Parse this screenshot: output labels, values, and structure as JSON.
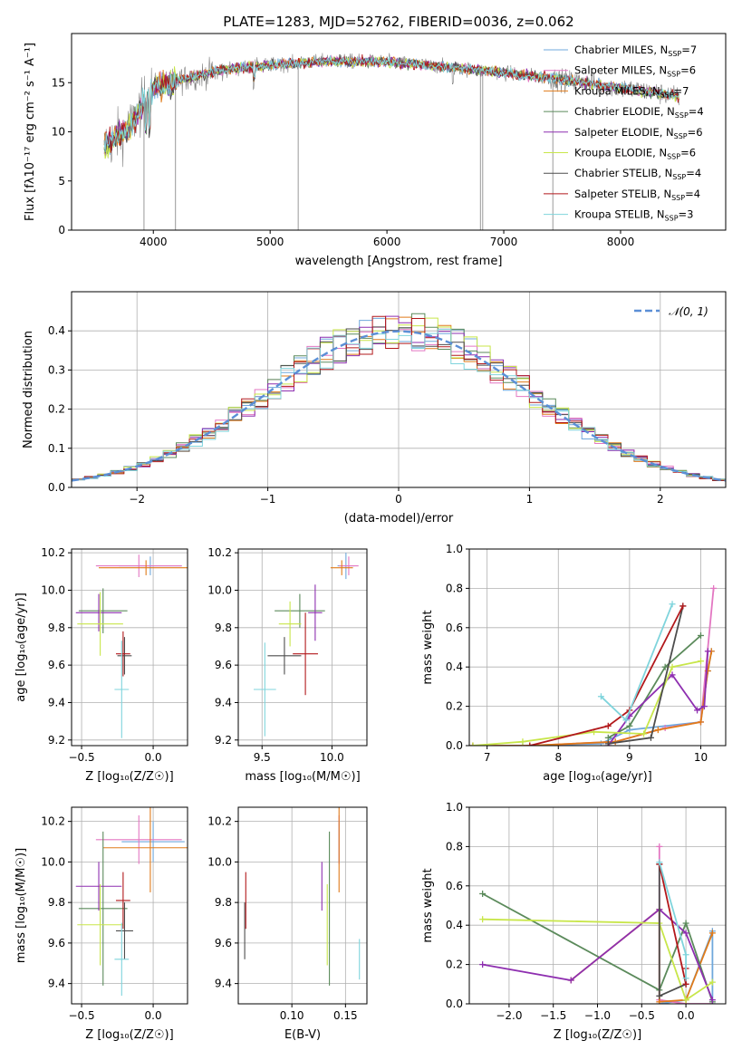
{
  "figure_title": "PLATE=1283, MJD=52762, FIBERID=0036, z=0.062",
  "colors": {
    "Chabrier MILES": "#6fa8dc",
    "Salpeter MILES": "#e377c2",
    "Kroupa MILES": "#e07b1a",
    "Chabrier ELODIE": "#5b8a5b",
    "Salpeter ELODIE": "#8e2fb0",
    "Kroupa ELODIE": "#c8e64a",
    "Chabrier STELIB": "#4d4d4d",
    "Salpeter STELIB": "#b2181b",
    "Kroupa STELIB": "#7fd4dc",
    "data": "#808080",
    "normal": "#5b8fd6"
  },
  "chart_data": [
    {
      "id": "spectrum",
      "type": "line",
      "xlabel": "wavelength [Angstrom, rest frame]",
      "ylabel": "Flux [fλ10⁻¹⁷ erg cm⁻² s⁻¹ A⁻¹]",
      "xlim": [
        3300,
        8900
      ],
      "ylim": [
        0,
        20
      ],
      "xticks": [
        4000,
        5000,
        6000,
        7000,
        8000
      ],
      "yticks": [
        0,
        5,
        10,
        15
      ],
      "grid": false,
      "legend_position": "right",
      "legend": [
        {
          "series": "Chabrier MILES",
          "label": "Chabrier MILES, N",
          "sub": "SSP",
          "suffix": "=7"
        },
        {
          "series": "Salpeter MILES",
          "label": "Salpeter MILES, N",
          "sub": "SSP",
          "suffix": "=6"
        },
        {
          "series": "Kroupa MILES",
          "label": "Kroupa MILES, N",
          "sub": "SSP",
          "suffix": "=7"
        },
        {
          "series": "Chabrier ELODIE",
          "label": "Chabrier ELODIE, N",
          "sub": "SSP",
          "suffix": "=4"
        },
        {
          "series": "Salpeter ELODIE",
          "label": "Salpeter ELODIE, N",
          "sub": "SSP",
          "suffix": "=6"
        },
        {
          "series": "Kroupa ELODIE",
          "label": "Kroupa ELODIE, N",
          "sub": "SSP",
          "suffix": "=6"
        },
        {
          "series": "Chabrier STELIB",
          "label": "Chabrier STELIB, N",
          "sub": "SSP",
          "suffix": "=4"
        },
        {
          "series": "Salpeter STELIB",
          "label": "Salpeter STELIB, N",
          "sub": "SSP",
          "suffix": "=4"
        },
        {
          "series": "Kroupa STELIB",
          "label": "Kroupa STELIB, N",
          "sub": "SSP",
          "suffix": "=3"
        }
      ],
      "continuum": [
        [
          3580,
          8.5
        ],
        [
          3800,
          10.5
        ],
        [
          4000,
          14.5
        ],
        [
          4300,
          15.5
        ],
        [
          4600,
          16.3
        ],
        [
          5000,
          16.8
        ],
        [
          5500,
          17.2
        ],
        [
          6000,
          17.1
        ],
        [
          6500,
          16.6
        ],
        [
          7000,
          16.0
        ],
        [
          7500,
          15.3
        ],
        [
          8000,
          14.5
        ],
        [
          8500,
          13.6
        ]
      ]
    },
    {
      "id": "residuals",
      "type": "step-histogram",
      "xlabel": "(data-model)/error",
      "ylabel": "Normed distribution",
      "xlim": [
        -2.5,
        2.5
      ],
      "ylim": [
        0,
        0.5
      ],
      "xticks": [
        -2,
        -1,
        0,
        1,
        2
      ],
      "yticks": [
        0.0,
        0.1,
        0.2,
        0.3,
        0.4
      ],
      "grid": true,
      "legend_position": "top-right",
      "legend": [
        {
          "series": "normal",
          "label": "𝒩(0, 1)"
        }
      ],
      "bin_width": 0.1
    },
    {
      "id": "age_vs_z",
      "type": "errorbar",
      "xlabel": "Z [log₁₀(Z/Z☉)]",
      "ylabel": "age  [log₁₀(age/yr)]",
      "xlim": [
        -0.57,
        0.24
      ],
      "ylim": [
        9.17,
        10.22
      ],
      "xticks": [
        -0.5,
        0.0
      ],
      "yticks": [
        9.2,
        9.4,
        9.6,
        9.8,
        10.0,
        10.2
      ],
      "grid": true,
      "points": [
        {
          "series": "Chabrier MILES",
          "x": -0.02,
          "y": 10.13,
          "xerr": 0.22,
          "yerr": 0.05
        },
        {
          "series": "Salpeter MILES",
          "x": -0.1,
          "y": 10.13,
          "xerr": 0.3,
          "yerr": 0.06
        },
        {
          "series": "Kroupa MILES",
          "x": -0.05,
          "y": 10.12,
          "xerr": 0.33,
          "yerr": 0.04
        },
        {
          "series": "Chabrier ELODIE",
          "x": -0.35,
          "y": 9.89,
          "xerr": 0.17,
          "yerr": 0.12
        },
        {
          "series": "Salpeter ELODIE",
          "x": -0.38,
          "y": 9.88,
          "xerr": 0.16,
          "yerr": 0.1
        },
        {
          "series": "Kroupa ELODIE",
          "x": -0.37,
          "y": 9.82,
          "xerr": 0.16,
          "yerr": 0.17
        },
        {
          "series": "Chabrier STELIB",
          "x": -0.2,
          "y": 9.65,
          "xerr": 0.05,
          "yerr": 0.1
        },
        {
          "series": "Salpeter STELIB",
          "x": -0.21,
          "y": 9.66,
          "xerr": 0.05,
          "yerr": 0.12
        },
        {
          "series": "Kroupa STELIB",
          "x": -0.22,
          "y": 9.47,
          "xerr": 0.05,
          "yerr": 0.26
        }
      ]
    },
    {
      "id": "age_vs_mass",
      "type": "errorbar",
      "xlabel": "mass [log₁₀(M/M☉)]",
      "ylabel": "",
      "xlim": [
        9.33,
        10.25
      ],
      "ylim": [
        9.17,
        10.22
      ],
      "xticks": [
        9.5,
        10.0
      ],
      "yticks": [
        9.2,
        9.4,
        9.6,
        9.8,
        10.0,
        10.2
      ],
      "grid": true,
      "points": [
        {
          "series": "Chabrier MILES",
          "x": 10.1,
          "y": 10.13,
          "xerr": 0.06,
          "yerr": 0.07
        },
        {
          "series": "Salpeter MILES",
          "x": 10.12,
          "y": 10.13,
          "xerr": 0.07,
          "yerr": 0.05
        },
        {
          "series": "Kroupa MILES",
          "x": 10.07,
          "y": 10.12,
          "xerr": 0.08,
          "yerr": 0.04
        },
        {
          "series": "Chabrier ELODIE",
          "x": 9.77,
          "y": 9.89,
          "xerr": 0.18,
          "yerr": 0.09
        },
        {
          "series": "Salpeter ELODIE",
          "x": 9.88,
          "y": 9.88,
          "xerr": 0.05,
          "yerr": 0.15
        },
        {
          "series": "Kroupa ELODIE",
          "x": 9.7,
          "y": 9.82,
          "xerr": 0.08,
          "yerr": 0.12
        },
        {
          "series": "Chabrier STELIB",
          "x": 9.66,
          "y": 9.65,
          "xerr": 0.12,
          "yerr": 0.1
        },
        {
          "series": "Salpeter STELIB",
          "x": 9.81,
          "y": 9.66,
          "xerr": 0.09,
          "yerr": 0.22
        },
        {
          "series": "Kroupa STELIB",
          "x": 9.52,
          "y": 9.47,
          "xerr": 0.08,
          "yerr": 0.25
        }
      ]
    },
    {
      "id": "weights_vs_age",
      "type": "line",
      "xlabel": "age  [log₁₀(age/yr)]",
      "ylabel": "mass weight",
      "xlim": [
        6.75,
        10.35
      ],
      "ylim": [
        0,
        1
      ],
      "xticks": [
        7,
        8,
        9,
        10
      ],
      "yticks": [
        0.0,
        0.2,
        0.4,
        0.6,
        0.8,
        1.0
      ],
      "grid": true,
      "series": [
        {
          "name": "Chabrier MILES",
          "points": [
            [
              6.8,
              0.0
            ],
            [
              7.5,
              0.0
            ],
            [
              8.6,
              0.01
            ],
            [
              9.0,
              0.08
            ],
            [
              10.0,
              0.12
            ],
            [
              10.1,
              0.38
            ],
            [
              10.15,
              0.48
            ]
          ]
        },
        {
          "name": "Salpeter MILES",
          "points": [
            [
              6.8,
              0.0
            ],
            [
              7.6,
              0.0
            ],
            [
              8.8,
              0.02
            ],
            [
              9.5,
              0.09
            ],
            [
              10.0,
              0.12
            ],
            [
              10.18,
              0.8
            ]
          ]
        },
        {
          "name": "Kroupa MILES",
          "points": [
            [
              6.8,
              0.0
            ],
            [
              7.6,
              0.0
            ],
            [
              8.8,
              0.02
            ],
            [
              9.4,
              0.08
            ],
            [
              10.0,
              0.12
            ],
            [
              10.1,
              0.38
            ],
            [
              10.15,
              0.48
            ]
          ]
        },
        {
          "name": "Chabrier ELODIE",
          "points": [
            [
              8.7,
              0.04
            ],
            [
              9.0,
              0.1
            ],
            [
              9.5,
              0.4
            ],
            [
              10.0,
              0.56
            ]
          ]
        },
        {
          "name": "Salpeter ELODIE",
          "points": [
            [
              8.7,
              0.0
            ],
            [
              9.0,
              0.15
            ],
            [
              9.6,
              0.36
            ],
            [
              9.95,
              0.18
            ],
            [
              10.05,
              0.2
            ],
            [
              10.1,
              0.48
            ]
          ]
        },
        {
          "name": "Kroupa ELODIE",
          "points": [
            [
              6.8,
              0.0
            ],
            [
              7.5,
              0.02
            ],
            [
              8.5,
              0.07
            ],
            [
              9.2,
              0.06
            ],
            [
              9.6,
              0.4
            ],
            [
              10.0,
              0.43
            ]
          ]
        },
        {
          "name": "Chabrier STELIB",
          "points": [
            [
              8.7,
              0.01
            ],
            [
              9.3,
              0.04
            ],
            [
              9.75,
              0.71
            ]
          ]
        },
        {
          "name": "Salpeter STELIB",
          "points": [
            [
              7.6,
              0.0
            ],
            [
              8.7,
              0.1
            ],
            [
              9.0,
              0.18
            ],
            [
              9.75,
              0.71
            ]
          ]
        },
        {
          "name": "Kroupa STELIB",
          "points": [
            [
              8.6,
              0.25
            ],
            [
              8.95,
              0.13
            ],
            [
              9.6,
              0.72
            ]
          ]
        }
      ]
    },
    {
      "id": "mass_vs_z",
      "type": "errorbar",
      "xlabel": "Z [log₁₀(Z/Z☉)]",
      "ylabel": "mass [log₁₀(M/M☉)]",
      "xlim": [
        -0.57,
        0.24
      ],
      "ylim": [
        9.3,
        10.27
      ],
      "xticks": [
        -0.5,
        0.0
      ],
      "yticks": [
        9.4,
        9.6,
        9.8,
        10.0,
        10.2
      ],
      "grid": true,
      "points": [
        {
          "series": "Chabrier MILES",
          "x": 0.0,
          "y": 10.1,
          "xerr": 0.22,
          "yerr": 0.1
        },
        {
          "series": "Salpeter MILES",
          "x": -0.1,
          "y": 10.11,
          "xerr": 0.3,
          "yerr": 0.12
        },
        {
          "series": "Kroupa MILES",
          "x": -0.02,
          "y": 10.07,
          "xerr": 0.33,
          "yerr": 0.22
        },
        {
          "series": "Chabrier ELODIE",
          "x": -0.35,
          "y": 9.77,
          "xerr": 0.17,
          "yerr": 0.38
        },
        {
          "series": "Salpeter ELODIE",
          "x": -0.38,
          "y": 9.88,
          "xerr": 0.16,
          "yerr": 0.12
        },
        {
          "series": "Kroupa ELODIE",
          "x": -0.37,
          "y": 9.69,
          "xerr": 0.16,
          "yerr": 0.2
        },
        {
          "series": "Chabrier STELIB",
          "x": -0.2,
          "y": 9.66,
          "xerr": 0.06,
          "yerr": 0.14
        },
        {
          "series": "Salpeter STELIB",
          "x": -0.21,
          "y": 9.81,
          "xerr": 0.05,
          "yerr": 0.14
        },
        {
          "series": "Kroupa STELIB",
          "x": -0.22,
          "y": 9.52,
          "xerr": 0.05,
          "yerr": 0.18
        }
      ]
    },
    {
      "id": "mass_vs_ebv",
      "type": "errorbar",
      "xlabel": "E(B-V)",
      "ylabel": "",
      "xlim": [
        0.05,
        0.17
      ],
      "ylim": [
        9.3,
        10.27
      ],
      "xticks": [
        0.1,
        0.15
      ],
      "yticks": [
        9.4,
        9.6,
        9.8,
        10.0,
        10.2
      ],
      "grid": true,
      "points": [
        {
          "series": "Chabrier MILES",
          "x": 0.144,
          "y": 10.1,
          "xerr": 0,
          "yerr": 0.1
        },
        {
          "series": "Salpeter MILES",
          "x": 0.144,
          "y": 10.11,
          "xerr": 0,
          "yerr": 0.12
        },
        {
          "series": "Kroupa MILES",
          "x": 0.144,
          "y": 10.07,
          "xerr": 0,
          "yerr": 0.22
        },
        {
          "series": "Chabrier ELODIE",
          "x": 0.135,
          "y": 9.77,
          "xerr": 0,
          "yerr": 0.38
        },
        {
          "series": "Salpeter ELODIE",
          "x": 0.128,
          "y": 9.88,
          "xerr": 0,
          "yerr": 0.12
        },
        {
          "series": "Kroupa ELODIE",
          "x": 0.133,
          "y": 9.69,
          "xerr": 0,
          "yerr": 0.2
        },
        {
          "series": "Chabrier STELIB",
          "x": 0.056,
          "y": 9.66,
          "xerr": 0,
          "yerr": 0.14
        },
        {
          "series": "Salpeter STELIB",
          "x": 0.057,
          "y": 9.81,
          "xerr": 0,
          "yerr": 0.14
        },
        {
          "series": "Kroupa STELIB",
          "x": 0.163,
          "y": 9.52,
          "xerr": 0,
          "yerr": 0.1
        }
      ]
    },
    {
      "id": "weights_vs_z",
      "type": "line",
      "xlabel": "Z [log₁₀(Z/Z☉)]",
      "ylabel": "mass weight",
      "xlim": [
        -2.45,
        0.45
      ],
      "ylim": [
        0,
        1
      ],
      "xticks": [
        -2.0,
        -1.5,
        -1.0,
        -0.5,
        0.0
      ],
      "yticks": [
        0.0,
        0.2,
        0.4,
        0.6,
        0.8,
        1.0
      ],
      "grid": true,
      "series": [
        {
          "name": "Chabrier MILES",
          "points": [
            [
              -0.3,
              0.0
            ],
            [
              0.0,
              0.02
            ],
            [
              0.3,
              0.37
            ],
            [
              0.3,
              0.0
            ]
          ]
        },
        {
          "name": "Salpeter MILES",
          "points": [
            [
              -0.3,
              0.8
            ],
            [
              -0.3,
              0.02
            ],
            [
              0.0,
              0.0
            ],
            [
              0.3,
              0.0
            ]
          ]
        },
        {
          "name": "Kroupa MILES",
          "points": [
            [
              -1.3,
              0.12
            ],
            [
              -0.3,
              0.48
            ],
            [
              -0.3,
              0.01
            ],
            [
              0.0,
              0.02
            ],
            [
              0.3,
              0.36
            ]
          ]
        },
        {
          "name": "Chabrier ELODIE",
          "points": [
            [
              -2.3,
              0.56
            ],
            [
              -0.3,
              0.07
            ],
            [
              0.0,
              0.41
            ],
            [
              0.3,
              0.01
            ]
          ]
        },
        {
          "name": "Salpeter ELODIE",
          "points": [
            [
              -2.3,
              0.2
            ],
            [
              -1.3,
              0.12
            ],
            [
              -0.3,
              0.48
            ],
            [
              0.0,
              0.36
            ],
            [
              0.3,
              0.02
            ]
          ]
        },
        {
          "name": "Kroupa ELODIE",
          "points": [
            [
              -2.3,
              0.43
            ],
            [
              -0.3,
              0.41
            ],
            [
              0.0,
              0.02
            ],
            [
              0.3,
              0.11
            ]
          ]
        },
        {
          "name": "Chabrier STELIB",
          "points": [
            [
              -0.3,
              0.71
            ],
            [
              -0.3,
              0.04
            ],
            [
              0.0,
              0.1
            ]
          ]
        },
        {
          "name": "Salpeter STELIB",
          "points": [
            [
              -0.3,
              0.71
            ],
            [
              0.0,
              0.1
            ],
            [
              0.0,
              0.18
            ]
          ]
        },
        {
          "name": "Kroupa STELIB",
          "points": [
            [
              -0.3,
              0.72
            ],
            [
              0.0,
              0.25
            ],
            [
              0.0,
              0.13
            ]
          ]
        }
      ]
    }
  ]
}
